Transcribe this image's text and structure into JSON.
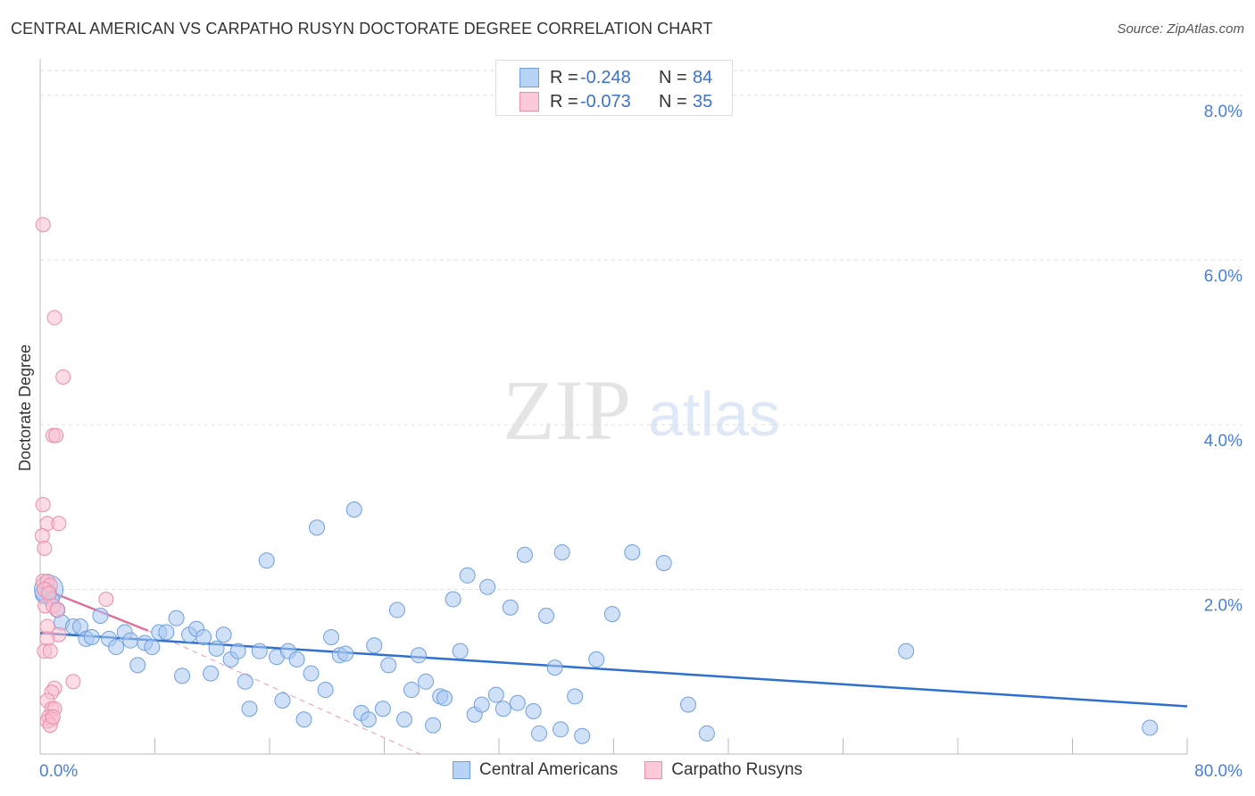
{
  "title": "CENTRAL AMERICAN VS CARPATHO RUSYN DOCTORATE DEGREE CORRELATION CHART",
  "source": "Source: ZipAtlas.com",
  "watermark": {
    "zip": "ZIP",
    "atlas": "atlas"
  },
  "colors": {
    "blue_fill": "#a9c8f0",
    "blue_stroke": "#6f9fe0",
    "blue_line": "#2f6fcf",
    "pink_fill": "#f8c0d0",
    "pink_stroke": "#ea8eaa",
    "pink_line": "#e0709a",
    "axis_text": "#4a7fd4",
    "grid": "#dddddd"
  },
  "stats": {
    "rows": [
      {
        "r_label": "R =",
        "r_value": "-0.248",
        "n_label": "N =",
        "n_value": "84"
      },
      {
        "r_label": "R =",
        "r_value": "-0.073",
        "n_label": "N =",
        "n_value": "35"
      }
    ]
  },
  "legend": {
    "blue_label": "Central Americans",
    "pink_label": "Carpatho Rusyns"
  },
  "chart_data": {
    "type": "scatter",
    "title": "CENTRAL AMERICAN VS CARPATHO RUSYN DOCTORATE DEGREE CORRELATION CHART",
    "xlabel": "",
    "ylabel": "Doctorate Degree",
    "xlim": [
      0,
      80
    ],
    "ylim": [
      0,
      8.4
    ],
    "x_tick_labels": [
      "0.0%",
      "80.0%"
    ],
    "y_ticks": [
      2,
      4,
      6,
      8
    ],
    "y_tick_labels": [
      "2.0%",
      "4.0%",
      "6.0%",
      "8.0%"
    ],
    "grid": true,
    "legend_position": "bottom",
    "series": [
      {
        "name": "Central Americans",
        "r": -0.248,
        "n": 84,
        "trend": {
          "x": [
            0,
            80
          ],
          "y": [
            1.47,
            0.58
          ],
          "style": "solid"
        },
        "points": [
          [
            0.4,
            1.95
          ],
          [
            0.6,
            2.0
          ],
          [
            0.8,
            1.88
          ],
          [
            1.2,
            1.75
          ],
          [
            1.5,
            1.6
          ],
          [
            2.3,
            1.55
          ],
          [
            2.8,
            1.55
          ],
          [
            3.2,
            1.4
          ],
          [
            3.6,
            1.42
          ],
          [
            4.2,
            1.68
          ],
          [
            4.8,
            1.4
          ],
          [
            5.3,
            1.3
          ],
          [
            5.9,
            1.48
          ],
          [
            6.3,
            1.38
          ],
          [
            6.8,
            1.08
          ],
          [
            7.3,
            1.35
          ],
          [
            7.8,
            1.3
          ],
          [
            8.3,
            1.48
          ],
          [
            8.8,
            1.48
          ],
          [
            9.5,
            1.65
          ],
          [
            9.9,
            0.95
          ],
          [
            10.4,
            1.45
          ],
          [
            10.9,
            1.52
          ],
          [
            11.4,
            1.42
          ],
          [
            11.9,
            0.98
          ],
          [
            12.3,
            1.28
          ],
          [
            12.8,
            1.45
          ],
          [
            13.3,
            1.15
          ],
          [
            13.8,
            1.25
          ],
          [
            14.3,
            0.88
          ],
          [
            14.6,
            0.55
          ],
          [
            15.3,
            1.25
          ],
          [
            15.8,
            2.35
          ],
          [
            16.5,
            1.18
          ],
          [
            16.9,
            0.65
          ],
          [
            17.3,
            1.25
          ],
          [
            17.9,
            1.15
          ],
          [
            18.4,
            0.42
          ],
          [
            18.9,
            0.98
          ],
          [
            19.3,
            2.75
          ],
          [
            19.9,
            0.78
          ],
          [
            20.3,
            1.42
          ],
          [
            20.9,
            1.2
          ],
          [
            21.3,
            1.22
          ],
          [
            21.9,
            2.97
          ],
          [
            22.4,
            0.5
          ],
          [
            22.9,
            0.42
          ],
          [
            23.3,
            1.32
          ],
          [
            23.9,
            0.55
          ],
          [
            24.3,
            1.08
          ],
          [
            24.9,
            1.75
          ],
          [
            25.4,
            0.42
          ],
          [
            25.9,
            0.78
          ],
          [
            26.4,
            1.2
          ],
          [
            26.9,
            0.88
          ],
          [
            27.4,
            0.35
          ],
          [
            27.9,
            0.7
          ],
          [
            28.2,
            0.68
          ],
          [
            28.8,
            1.88
          ],
          [
            29.3,
            1.25
          ],
          [
            29.8,
            2.17
          ],
          [
            30.3,
            0.48
          ],
          [
            30.8,
            0.6
          ],
          [
            31.2,
            2.03
          ],
          [
            31.8,
            0.72
          ],
          [
            32.3,
            0.55
          ],
          [
            32.8,
            1.78
          ],
          [
            33.3,
            0.62
          ],
          [
            33.8,
            2.42
          ],
          [
            34.4,
            0.52
          ],
          [
            34.8,
            0.25
          ],
          [
            35.3,
            1.68
          ],
          [
            35.9,
            1.05
          ],
          [
            36.4,
            2.45
          ],
          [
            36.3,
            0.3
          ],
          [
            37.3,
            0.7
          ],
          [
            37.8,
            0.22
          ],
          [
            38.8,
            1.15
          ],
          [
            39.9,
            1.7
          ],
          [
            41.3,
            2.45
          ],
          [
            43.5,
            2.32
          ],
          [
            45.2,
            0.6
          ],
          [
            46.5,
            0.25
          ],
          [
            60.4,
            1.25
          ],
          [
            77.4,
            0.32
          ]
        ]
      },
      {
        "name": "Carpatho Rusyns",
        "r": -0.073,
        "n": 35,
        "trend": {
          "x": [
            0,
            7.5
          ],
          "y": [
            2.02,
            1.5
          ],
          "style": "solid",
          "extension": {
            "x": [
              7.5,
              26.5
            ],
            "y": [
              1.5,
              0
            ],
            "style": "dashed"
          }
        },
        "points": [
          [
            0.2,
            6.43
          ],
          [
            1.0,
            5.3
          ],
          [
            1.6,
            4.58
          ],
          [
            0.9,
            3.87
          ],
          [
            1.1,
            3.87
          ],
          [
            0.2,
            3.03
          ],
          [
            0.5,
            2.8
          ],
          [
            1.3,
            2.8
          ],
          [
            0.15,
            2.65
          ],
          [
            0.3,
            2.5
          ],
          [
            0.2,
            2.1
          ],
          [
            0.5,
            2.1
          ],
          [
            0.7,
            2.05
          ],
          [
            0.3,
            2.0
          ],
          [
            0.6,
            1.95
          ],
          [
            4.6,
            1.88
          ],
          [
            0.35,
            1.8
          ],
          [
            0.9,
            1.8
          ],
          [
            1.2,
            1.75
          ],
          [
            0.5,
            1.55
          ],
          [
            1.3,
            1.45
          ],
          [
            0.5,
            1.4
          ],
          [
            0.3,
            1.25
          ],
          [
            0.7,
            1.25
          ],
          [
            2.3,
            0.88
          ],
          [
            1.0,
            0.8
          ],
          [
            0.8,
            0.75
          ],
          [
            0.5,
            0.65
          ],
          [
            0.8,
            0.55
          ],
          [
            1.0,
            0.55
          ],
          [
            0.6,
            0.45
          ],
          [
            0.8,
            0.42
          ],
          [
            0.5,
            0.4
          ],
          [
            0.7,
            0.35
          ],
          [
            0.9,
            0.45
          ]
        ]
      }
    ]
  }
}
